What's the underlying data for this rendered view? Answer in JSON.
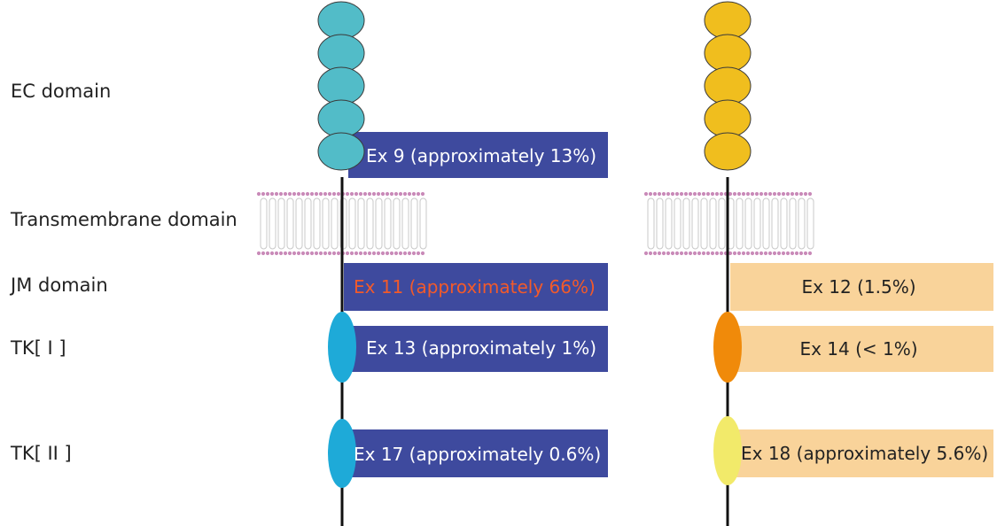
{
  "domains": {
    "ec": "EC domain",
    "tm": "Transmembrane domain",
    "jm": "JM domain",
    "tk1": "TK[ I ]",
    "tk2": "TK[ II ]"
  },
  "receptor_left": {
    "ec_color": "#52BCC8",
    "ex9": "Ex 9 (approximately 13%)",
    "ex11": "Ex 11 (approximately 66%)",
    "ex13": "Ex 13 (approximately 1%)",
    "ex17": "Ex 17 (approximately 0.6%)",
    "box_color": "#3E4A9E",
    "tk_color": "#1EAAD8"
  },
  "receptor_right": {
    "ec_color": "#F0BE1E",
    "ex12": "Ex 12 (1.5%)",
    "ex14": "Ex 14 (< 1%)",
    "ex18": "Ex 18 (approximately 5.6%)",
    "box_color": "#F9D39A",
    "tk1_color": "#F08A0A",
    "tk2_color": "#F2EA6A"
  },
  "colors": {
    "highlight_text": "#F25A2A",
    "membrane_dots": "#C98AB8"
  }
}
